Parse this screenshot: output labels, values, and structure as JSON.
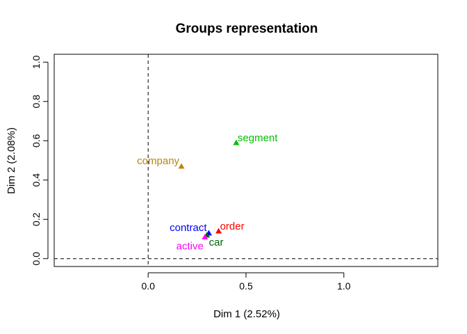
{
  "chart_data": {
    "type": "scatter",
    "title": "Groups representation",
    "xlabel": "Dim 1 (2.52%)",
    "ylabel": "Dim 2 (2.08%)",
    "xlim": [
      -0.48,
      1.48
    ],
    "ylim": [
      -0.04,
      1.04
    ],
    "x_ticks": [
      0.0,
      0.5,
      1.0
    ],
    "x_tick_labels": [
      "0.0",
      "0.5",
      "1.0"
    ],
    "y_ticks": [
      0.0,
      0.2,
      0.4,
      0.6,
      0.8,
      1.0
    ],
    "y_tick_labels": [
      "0.0",
      "0.2",
      "0.4",
      "0.6",
      "0.8",
      "1.0"
    ],
    "reference_lines": {
      "x": 0,
      "y": 0,
      "style": "dashed"
    },
    "points": [
      {
        "label": "segment",
        "x": 0.45,
        "y": 0.59,
        "color": "#00c000",
        "label_side": "right"
      },
      {
        "label": "company",
        "x": 0.17,
        "y": 0.47,
        "color": "#b8860b",
        "label_side": "left"
      },
      {
        "label": "order",
        "x": 0.36,
        "y": 0.14,
        "color": "#ff0000",
        "label_side": "right"
      },
      {
        "label": "contract",
        "x": 0.31,
        "y": 0.13,
        "color": "#0000ff",
        "label_side": "left"
      },
      {
        "label": "car",
        "x": 0.3,
        "y": 0.12,
        "color": "#006400",
        "label_side": "below-right"
      },
      {
        "label": "active",
        "x": 0.29,
        "y": 0.11,
        "color": "#ff00ff",
        "label_side": "below-left"
      }
    ],
    "marker": "triangle",
    "grid": false
  }
}
